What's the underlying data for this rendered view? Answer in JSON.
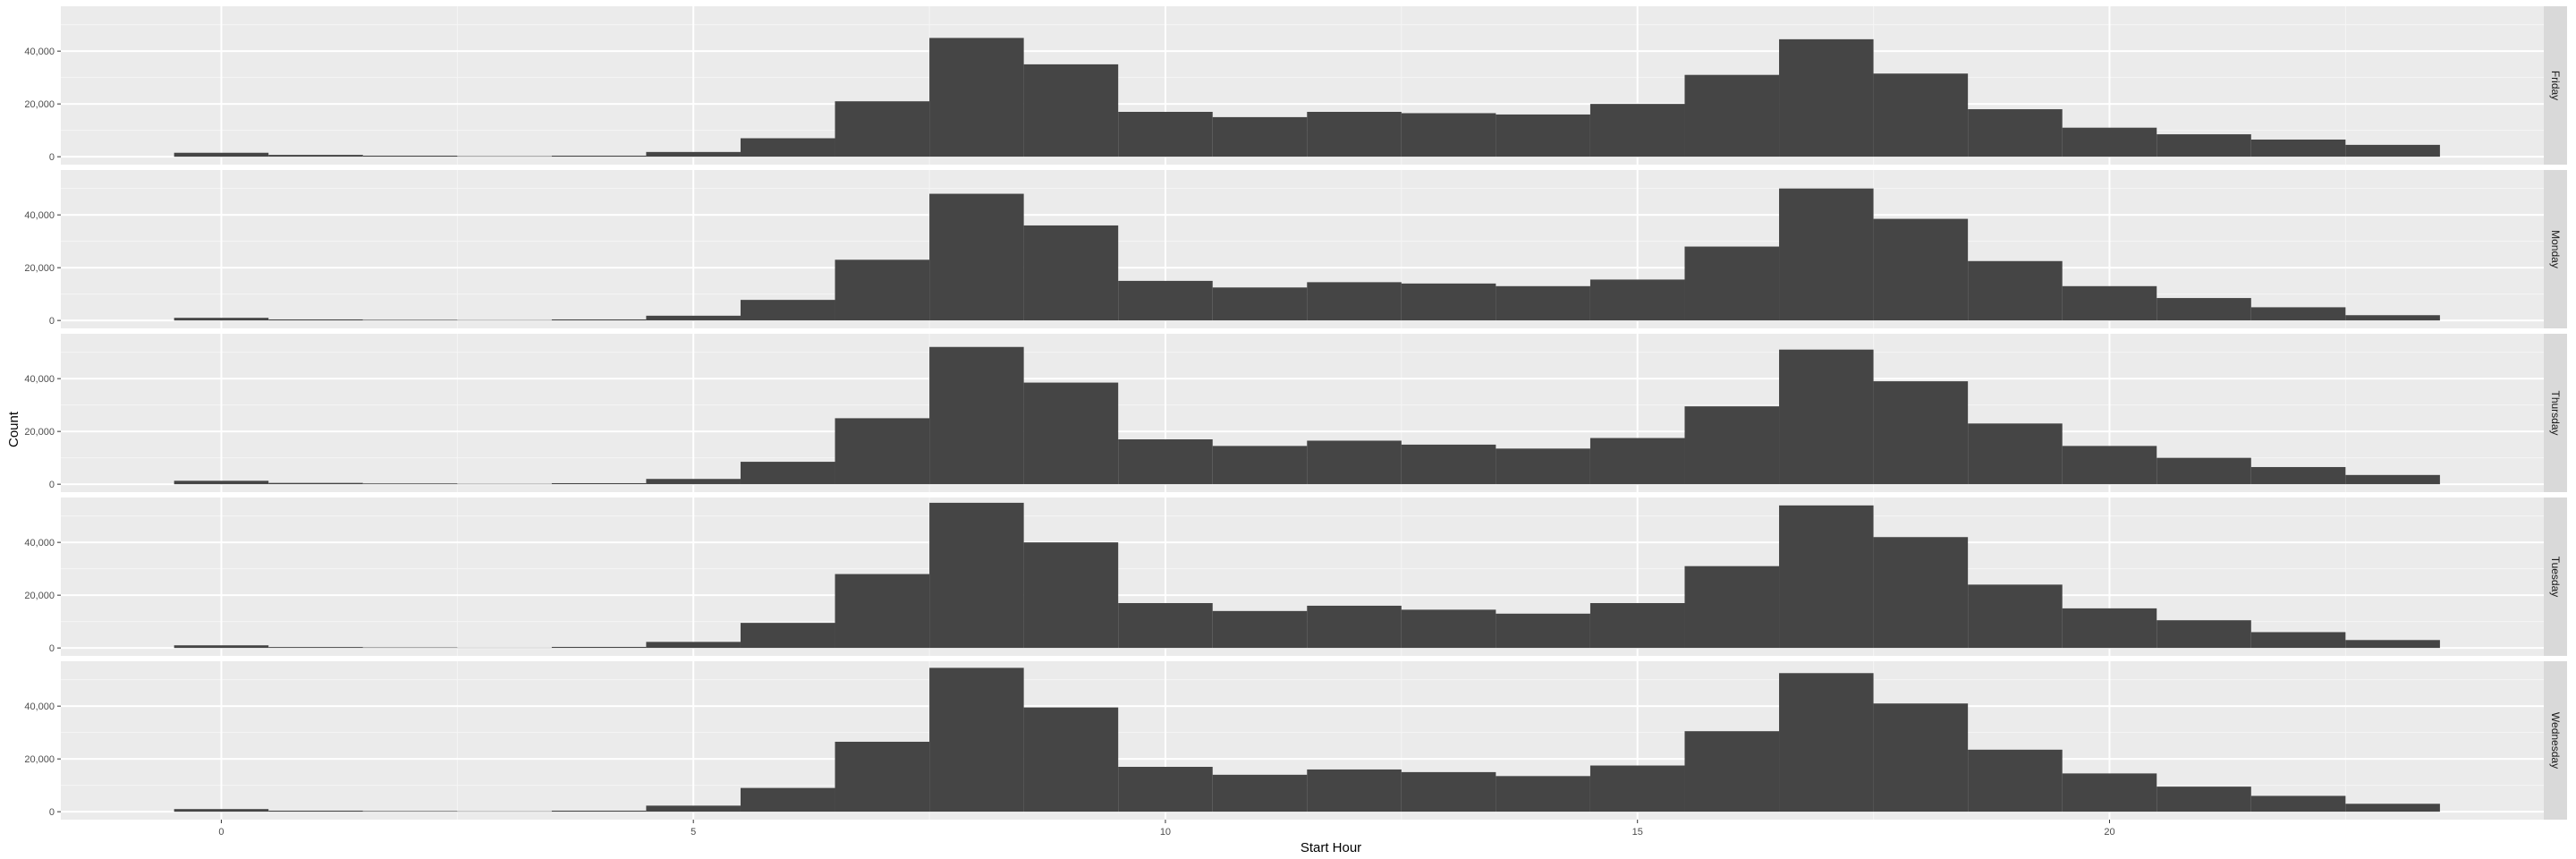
{
  "chart_data": {
    "type": "bar",
    "subtype": "faceted-histogram",
    "title": "",
    "xlabel": "Start Hour",
    "ylabel": "Count",
    "x": [
      0,
      1,
      2,
      3,
      4,
      5,
      6,
      7,
      8,
      9,
      10,
      11,
      12,
      13,
      14,
      15,
      16,
      17,
      18,
      19,
      20,
      21,
      22,
      23
    ],
    "xlim": [
      -1.7,
      24.6
    ],
    "xticks": [
      0,
      5,
      10,
      15,
      20
    ],
    "xtick_labels": [
      "0",
      "5",
      "10",
      "15",
      "20"
    ],
    "ylim": [
      -3000,
      57000
    ],
    "yticks": [
      0,
      20000,
      40000
    ],
    "ytick_labels": [
      "0",
      "20,000",
      "40,000"
    ],
    "grid": true,
    "legend": "none",
    "colors": {
      "bar": "#454545",
      "panel": "#ebebeb",
      "strip": "#d9d9d9",
      "grid_major": "#ffffff",
      "grid_minor": "#f5f5f5"
    },
    "series": [
      {
        "name": "Friday",
        "values": [
          1500,
          700,
          400,
          200,
          400,
          1800,
          7000,
          21000,
          45000,
          35000,
          17000,
          15000,
          17000,
          16500,
          16000,
          20000,
          31000,
          44500,
          31500,
          18000,
          11000,
          8500,
          6500,
          4500
        ]
      },
      {
        "name": "Monday",
        "values": [
          1000,
          400,
          250,
          150,
          400,
          1800,
          7800,
          23000,
          48000,
          36000,
          15000,
          12500,
          14500,
          14000,
          13000,
          15500,
          28000,
          50000,
          38500,
          22500,
          13000,
          8500,
          5000,
          2000
        ]
      },
      {
        "name": "Thursday",
        "values": [
          1300,
          500,
          300,
          150,
          400,
          2000,
          8500,
          25000,
          52000,
          38500,
          17000,
          14500,
          16500,
          15000,
          13500,
          17500,
          29500,
          51000,
          39000,
          23000,
          14500,
          10000,
          6500,
          3500
        ]
      },
      {
        "name": "Tuesday",
        "values": [
          1000,
          350,
          200,
          100,
          400,
          2300,
          9500,
          28000,
          55000,
          40000,
          17000,
          14000,
          16000,
          14500,
          13000,
          17000,
          31000,
          54000,
          42000,
          24000,
          15000,
          10500,
          6000,
          3000
        ]
      },
      {
        "name": "Wednesday",
        "values": [
          1000,
          400,
          250,
          150,
          400,
          2300,
          9000,
          26500,
          54500,
          39500,
          17000,
          14000,
          16000,
          15000,
          13500,
          17500,
          30500,
          52500,
          41000,
          23500,
          14500,
          9500,
          6000,
          3000
        ]
      }
    ]
  }
}
